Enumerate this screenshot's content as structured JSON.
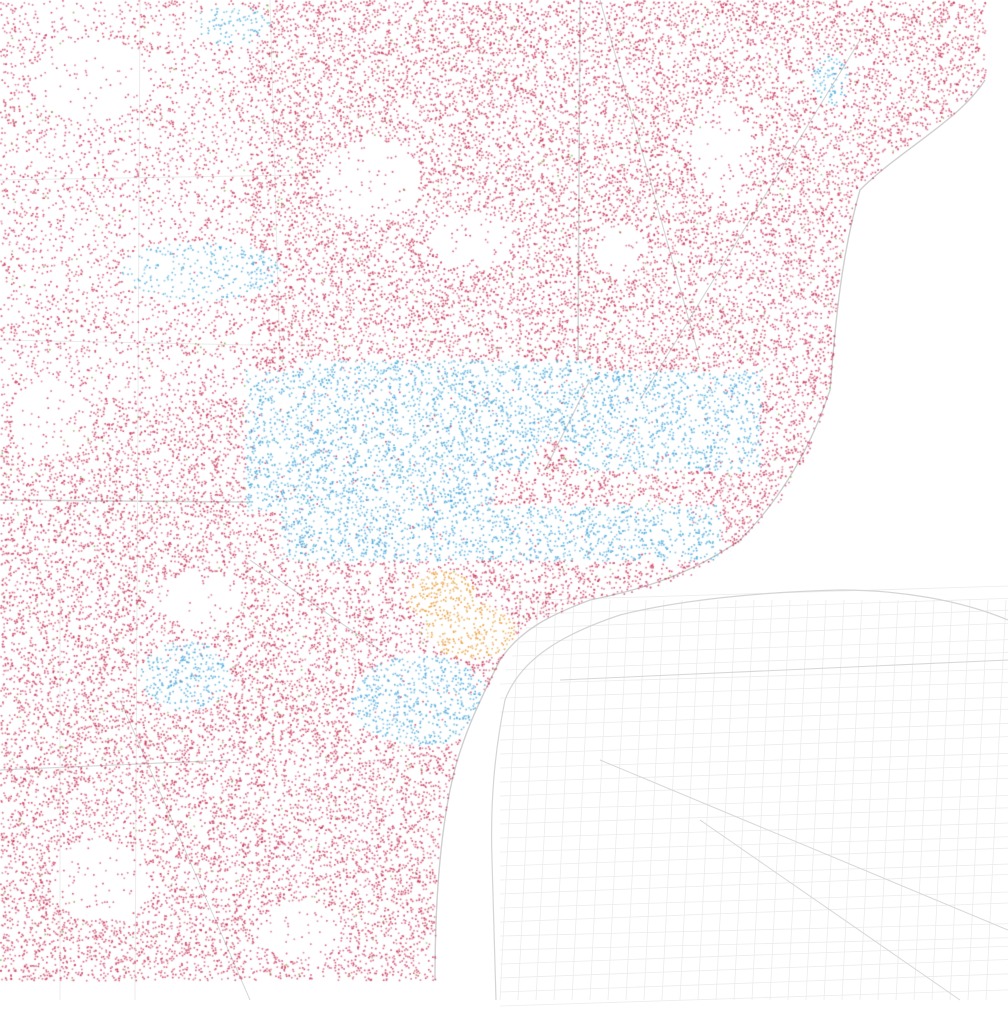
{
  "map": {
    "type": "dot-density",
    "colors": {
      "red": "#c8345a",
      "blue": "#3fa3d8",
      "orange": "#e6952a",
      "green": "#7fae3a",
      "road": "#d7d7d7",
      "road_faint": "#ececec",
      "water": "#ffffff",
      "background": "#ffffff"
    }
  }
}
